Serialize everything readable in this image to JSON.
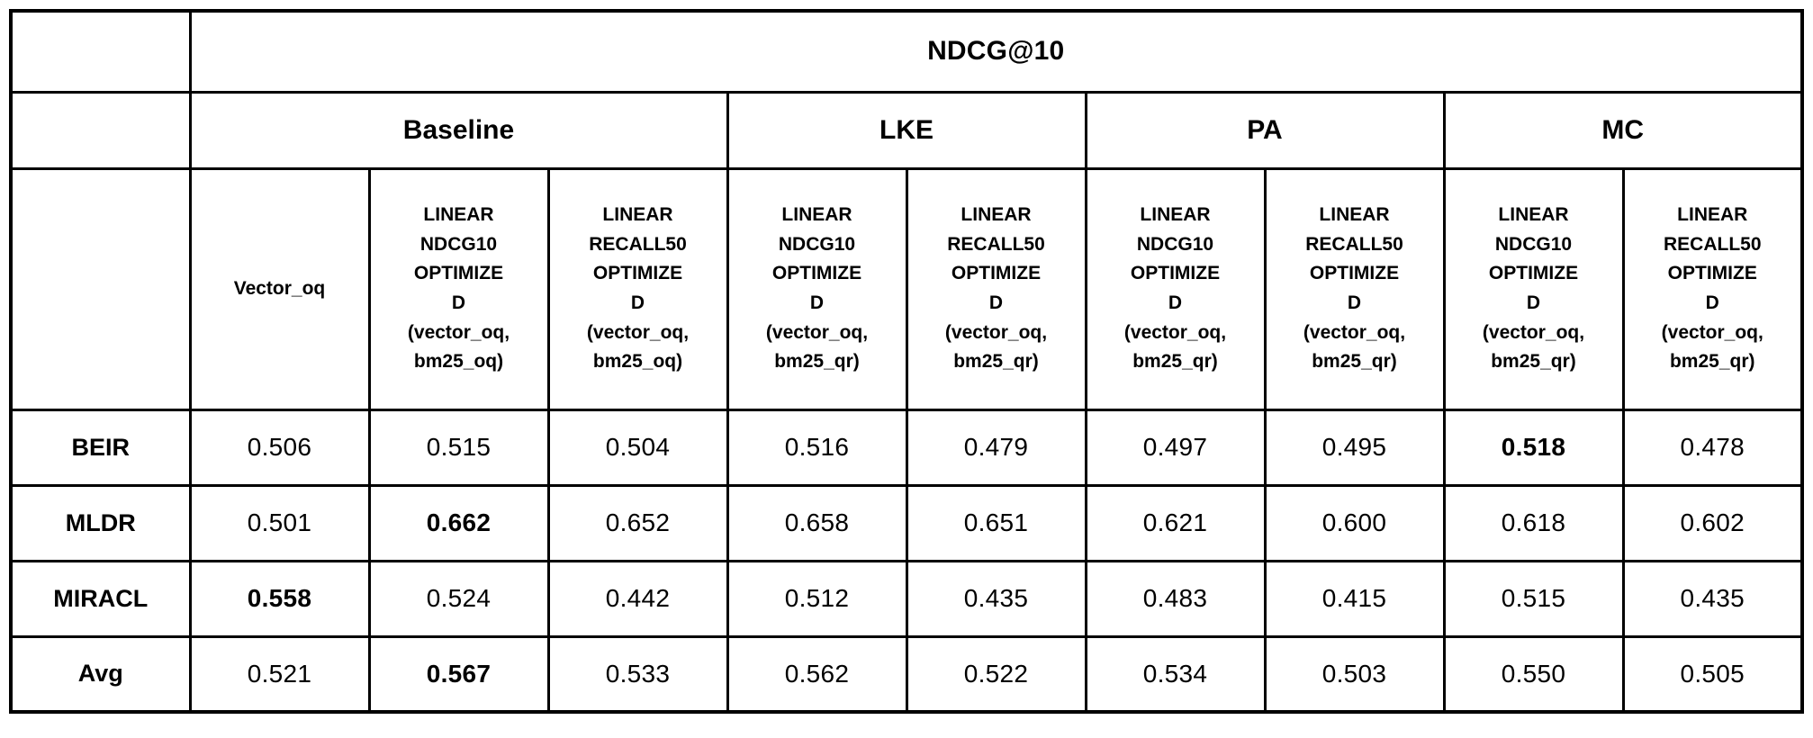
{
  "table": {
    "title": "NDCG@10",
    "groups": [
      {
        "label": "Baseline"
      },
      {
        "label": "LKE"
      },
      {
        "label": "PA"
      },
      {
        "label": "MC"
      }
    ],
    "columns": [
      "Vector_oq",
      "LINEAR\nNDCG10\nOPTIMIZE\nD\n(vector_oq,\nbm25_oq)",
      "LINEAR\nRECALL50\nOPTIMIZE\nD\n(vector_oq,\nbm25_oq)",
      "LINEAR\nNDCG10\nOPTIMIZE\nD\n(vector_oq,\nbm25_qr)",
      "LINEAR\nRECALL50\nOPTIMIZE\nD\n(vector_oq,\nbm25_qr)",
      "LINEAR\nNDCG10\nOPTIMIZE\nD\n(vector_oq,\nbm25_qr)",
      "LINEAR\nRECALL50\nOPTIMIZE\nD\n(vector_oq,\nbm25_qr)",
      "LINEAR\nNDCG10\nOPTIMIZE\nD\n(vector_oq,\nbm25_qr)",
      "LINEAR\nRECALL50\nOPTIMIZE\nD\n(vector_oq,\nbm25_qr)"
    ],
    "rows": [
      {
        "label": "BEIR",
        "cells": [
          {
            "v": "0.506",
            "cls": "num"
          },
          {
            "v": "0.515",
            "cls": "num"
          },
          {
            "v": "0.504",
            "cls": "num"
          },
          {
            "v": "0.516",
            "cls": "num"
          },
          {
            "v": "0.479",
            "cls": "num"
          },
          {
            "v": "0.497",
            "cls": "num"
          },
          {
            "v": "0.495",
            "cls": "num"
          },
          {
            "v": "0.518",
            "cls": "num bold"
          },
          {
            "v": "0.478",
            "cls": "num"
          }
        ]
      },
      {
        "label": "MLDR",
        "cells": [
          {
            "v": "0.501",
            "cls": "num"
          },
          {
            "v": "0.662",
            "cls": "num bold"
          },
          {
            "v": "0.652",
            "cls": "num"
          },
          {
            "v": "0.658",
            "cls": "num"
          },
          {
            "v": "0.651",
            "cls": "num"
          },
          {
            "v": "0.621",
            "cls": "num"
          },
          {
            "v": "0.600",
            "cls": "num"
          },
          {
            "v": "0.618",
            "cls": "num"
          },
          {
            "v": "0.602",
            "cls": "num"
          }
        ]
      },
      {
        "label": "MIRACL",
        "cells": [
          {
            "v": "0.558",
            "cls": "num bold"
          },
          {
            "v": "0.524",
            "cls": "num"
          },
          {
            "v": "0.442",
            "cls": "num"
          },
          {
            "v": "0.512",
            "cls": "num"
          },
          {
            "v": "0.435",
            "cls": "num"
          },
          {
            "v": "0.483",
            "cls": "num"
          },
          {
            "v": "0.415",
            "cls": "num"
          },
          {
            "v": "0.515",
            "cls": "num"
          },
          {
            "v": "0.435",
            "cls": "num"
          }
        ]
      },
      {
        "label": "Avg",
        "cells": [
          {
            "v": "0.521",
            "cls": "num"
          },
          {
            "v": "0.567",
            "cls": "num bold"
          },
          {
            "v": "0.533",
            "cls": "num"
          },
          {
            "v": "0.562",
            "cls": "num"
          },
          {
            "v": "0.522",
            "cls": "num"
          },
          {
            "v": "0.534",
            "cls": "num"
          },
          {
            "v": "0.503",
            "cls": "num"
          },
          {
            "v": "0.550",
            "cls": "num"
          },
          {
            "v": "0.505",
            "cls": "num"
          }
        ]
      }
    ]
  }
}
